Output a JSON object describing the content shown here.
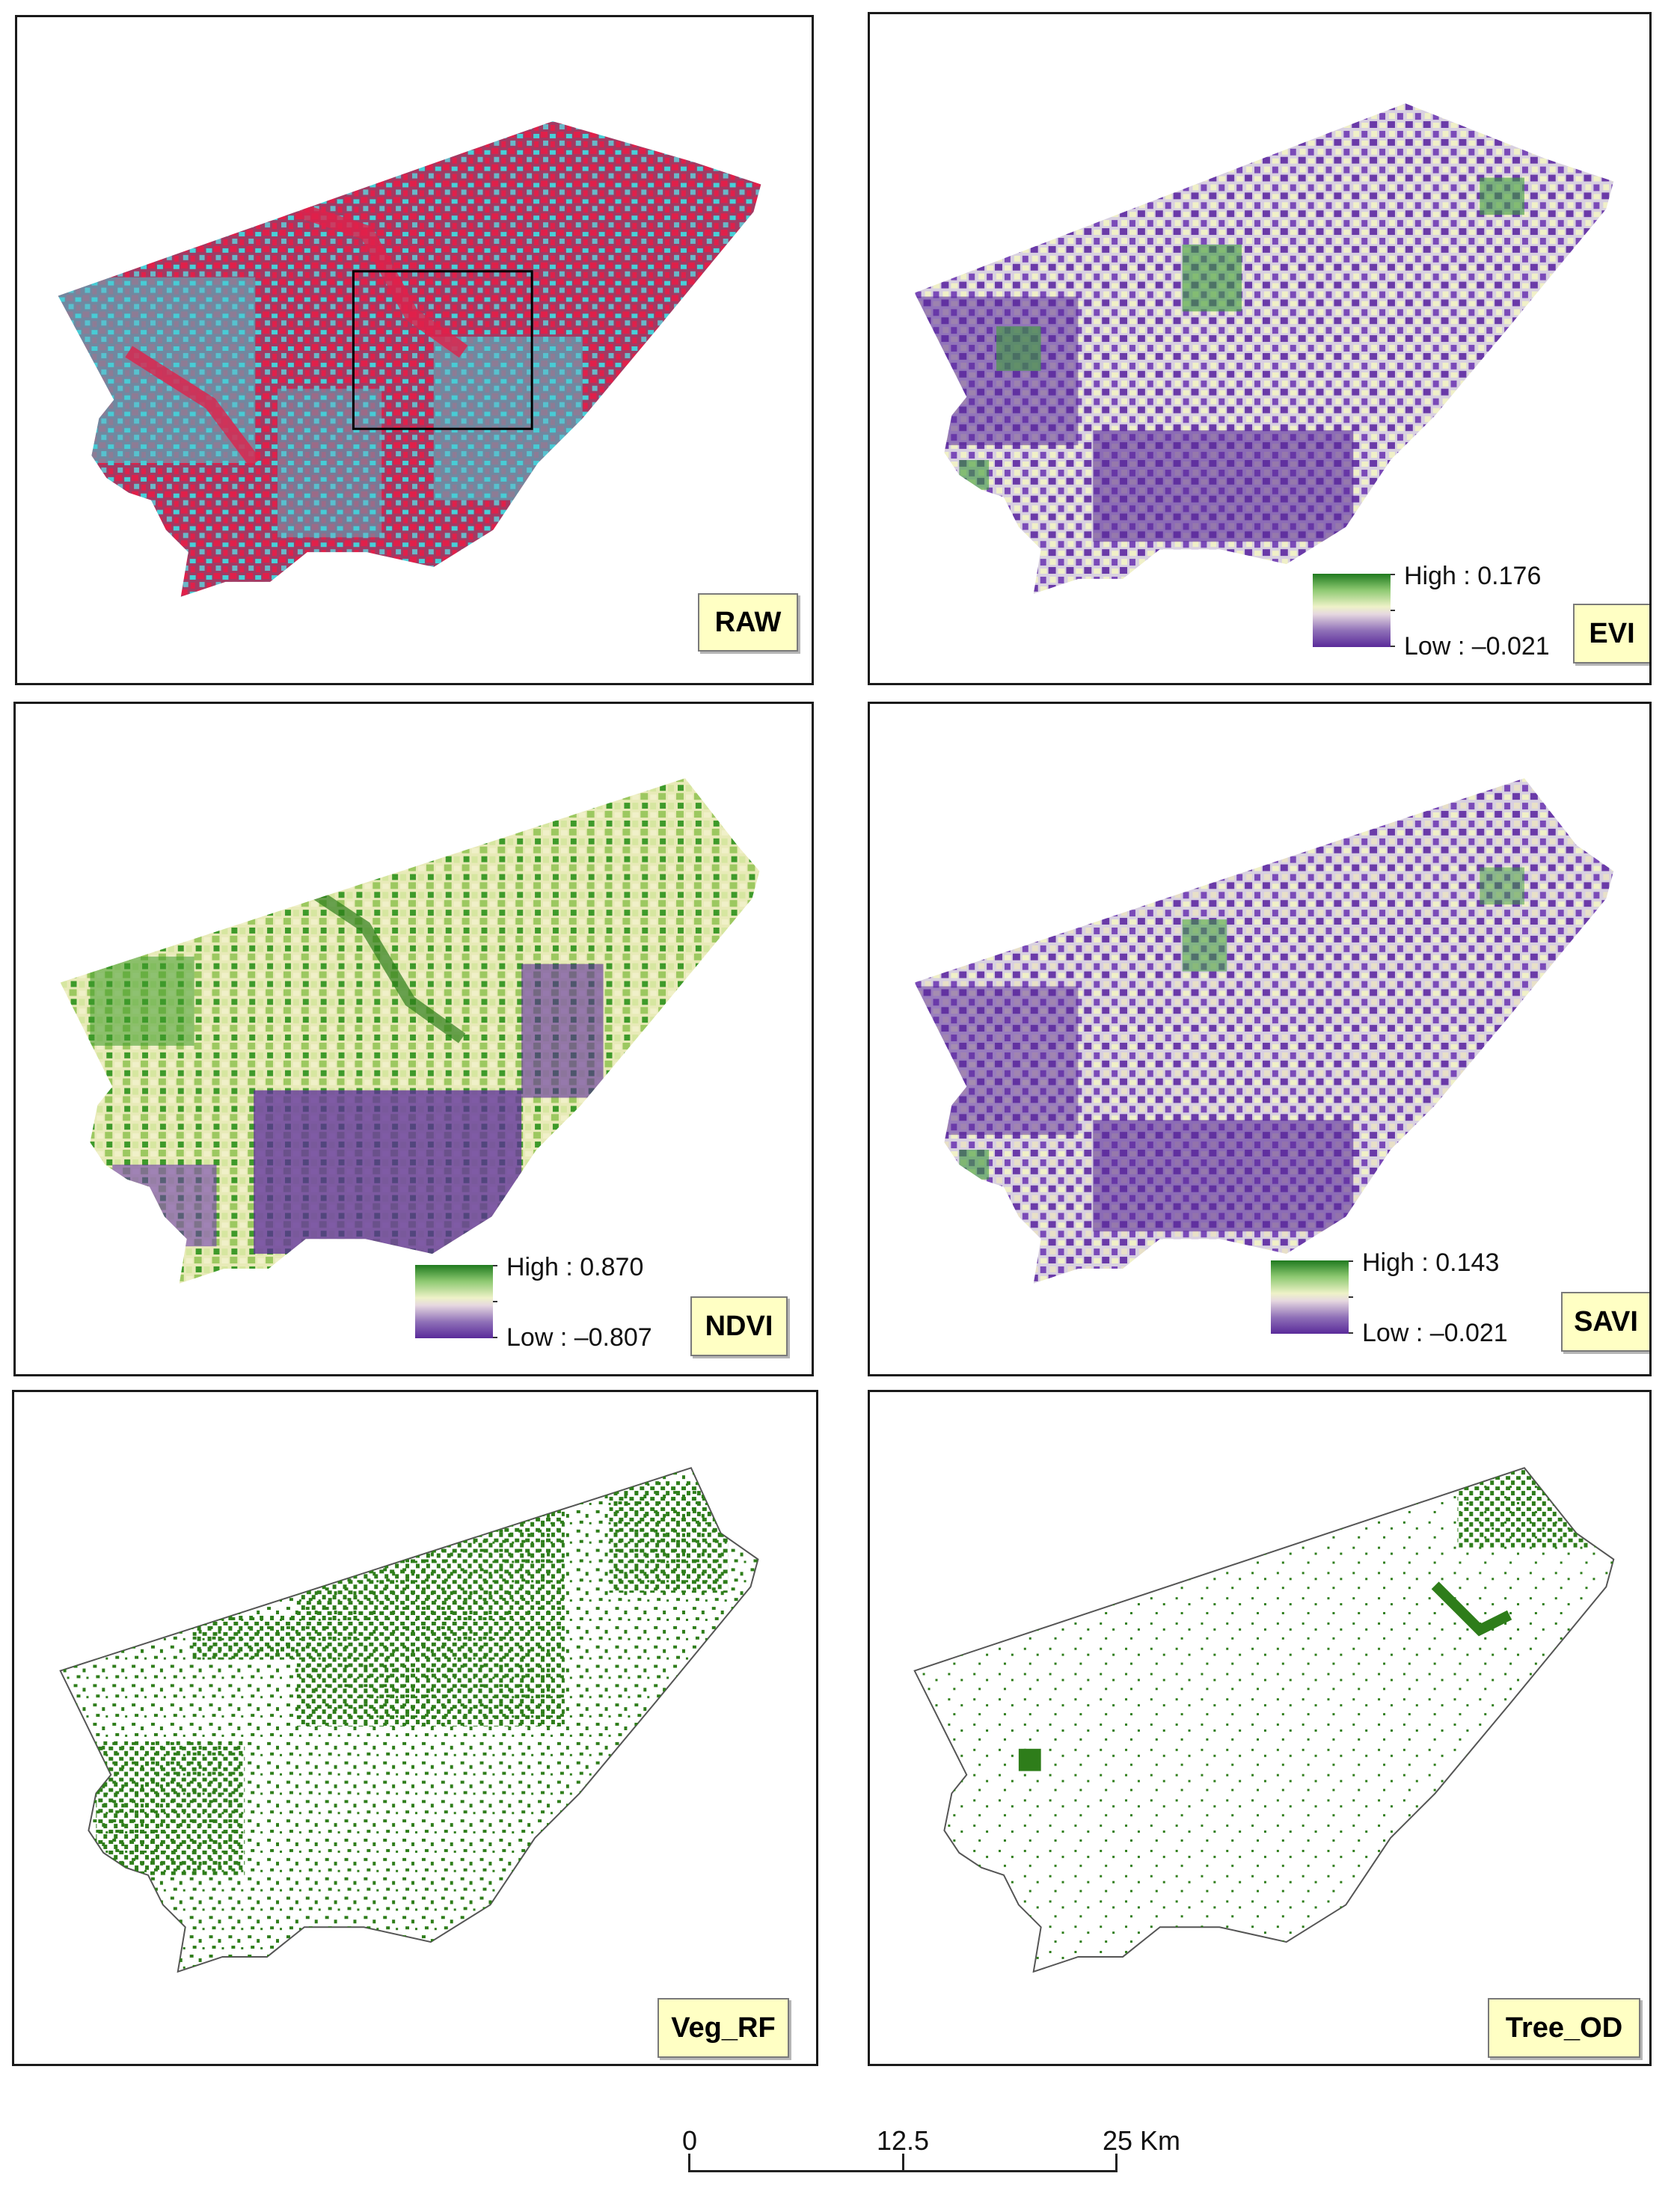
{
  "panels": [
    {
      "id": "raw",
      "label": "RAW"
    },
    {
      "id": "evi",
      "label": "EVI",
      "legend": {
        "high": "High : 0.176",
        "low": "Low : –0.021"
      }
    },
    {
      "id": "ndvi",
      "label": "NDVI",
      "legend": {
        "high": "High : 0.870",
        "low": "Low : –0.807"
      }
    },
    {
      "id": "savi",
      "label": "SAVI",
      "legend": {
        "high": "High : 0.143",
        "low": "Low : –0.021"
      }
    },
    {
      "id": "vegrf",
      "label": "Veg_RF"
    },
    {
      "id": "treeod",
      "label": "Tree_OD"
    }
  ],
  "scale_bar": {
    "ticks": [
      "0",
      "12.5",
      "25 Km"
    ]
  },
  "colors": {
    "high": "#1f7a1f",
    "mid": "#f0f0c0",
    "low": "#5a2a9a",
    "raw_veg": "#e0204a",
    "raw_urban": "#48d0d8",
    "raw_mid": "#9a4a6a",
    "veg_points": "#2e7d1a"
  }
}
